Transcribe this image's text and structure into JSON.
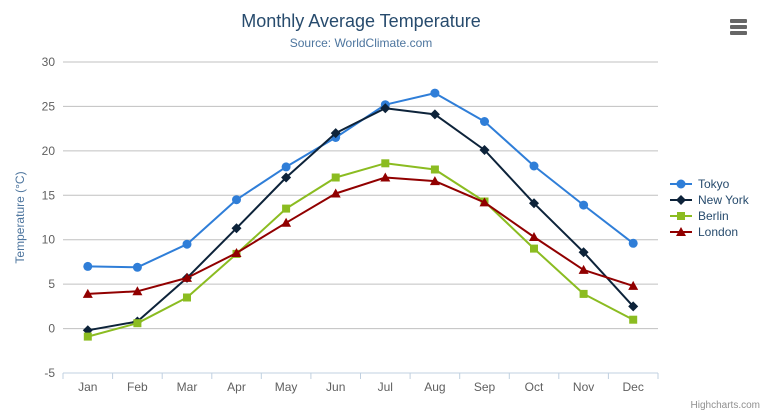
{
  "header": {
    "title": "Monthly Average Temperature",
    "subtitle": "Source: WorldClimate.com"
  },
  "context_menu": {
    "icon": "hamburger-menu-icon"
  },
  "credits": {
    "label": "Highcharts.com"
  },
  "colors": {
    "title": "#274b6d",
    "subtitle": "#4d759e",
    "axis_label": "#606060",
    "axis_title": "#4d759e",
    "legend_text": "#274b6d",
    "gridline": "#C0C0C0",
    "axis_line": "#C0D0E0",
    "credits": "#909090",
    "menu_icon": "#666666"
  },
  "chart_data": {
    "type": "line",
    "title": "Monthly Average Temperature",
    "subtitle": "Source: WorldClimate.com",
    "categories": [
      "Jan",
      "Feb",
      "Mar",
      "Apr",
      "May",
      "Jun",
      "Jul",
      "Aug",
      "Sep",
      "Oct",
      "Nov",
      "Dec"
    ],
    "xlabel": "",
    "ylabel": "Temperature (°C)",
    "ylim": [
      -5,
      30
    ],
    "yticks": [
      -5,
      0,
      5,
      10,
      15,
      20,
      25,
      30
    ],
    "grid": true,
    "legend_position": "right",
    "series": [
      {
        "name": "Tokyo",
        "color": "#2f7ed8",
        "marker": "circle",
        "values": [
          7.0,
          6.9,
          9.5,
          14.5,
          18.2,
          21.5,
          25.2,
          26.5,
          23.3,
          18.3,
          13.9,
          9.6
        ]
      },
      {
        "name": "New York",
        "color": "#0d233a",
        "marker": "diamond",
        "values": [
          -0.2,
          0.8,
          5.7,
          11.3,
          17.0,
          22.0,
          24.8,
          24.1,
          20.1,
          14.1,
          8.6,
          2.5
        ]
      },
      {
        "name": "Berlin",
        "color": "#8bbc21",
        "marker": "square",
        "values": [
          -0.9,
          0.6,
          3.5,
          8.4,
          13.5,
          17.0,
          18.6,
          17.9,
          14.3,
          9.0,
          3.9,
          1.0
        ]
      },
      {
        "name": "London",
        "color": "#910000",
        "marker": "triangle",
        "values": [
          3.9,
          4.2,
          5.7,
          8.5,
          11.9,
          15.2,
          17.0,
          16.6,
          14.2,
          10.3,
          6.6,
          4.8
        ]
      }
    ]
  }
}
